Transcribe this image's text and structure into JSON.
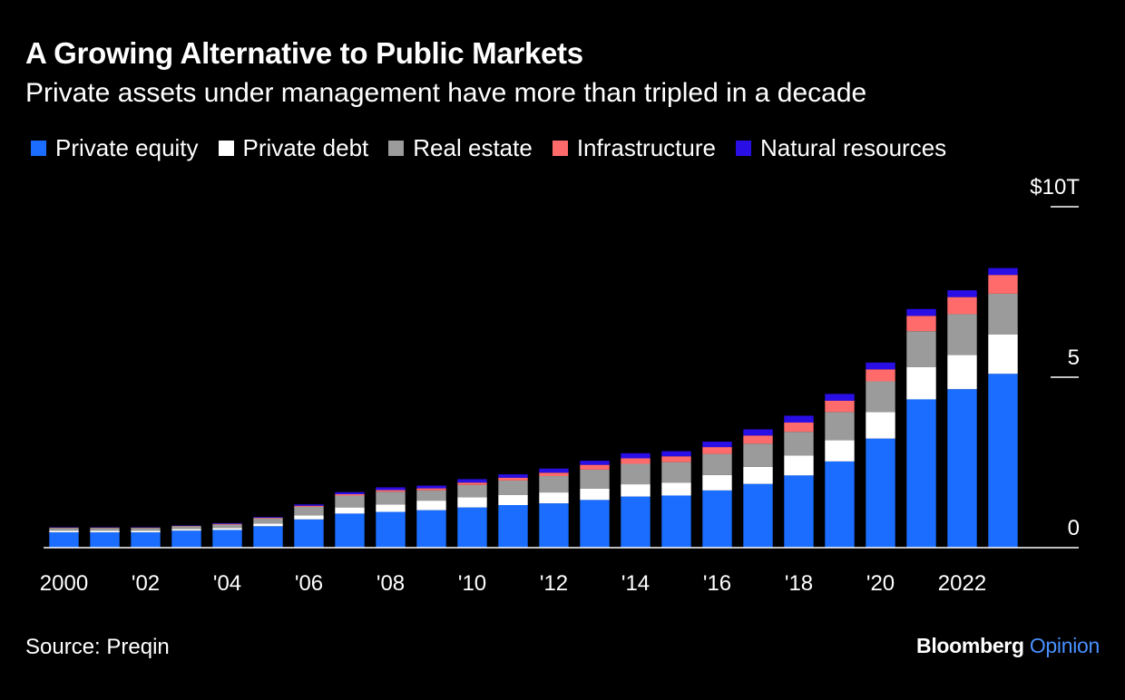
{
  "title": "A Growing Alternative to Public Markets",
  "subtitle": "Private assets under management have more than tripled in a decade",
  "source": "Source: Preqin",
  "brand": {
    "part1": "Bloomberg",
    "part2": "Opinion",
    "part2_color": "#4a90ff"
  },
  "chart_data": {
    "type": "bar",
    "stacked": true,
    "categories": [
      "2000",
      "2001",
      "2002",
      "2003",
      "2004",
      "2005",
      "2006",
      "2007",
      "2008",
      "2009",
      "2010",
      "2011",
      "2012",
      "2013",
      "2014",
      "2015",
      "2016",
      "2017",
      "2018",
      "2019",
      "2020",
      "2021",
      "2022",
      "2023"
    ],
    "x_tick_labels": [
      {
        "index": 0,
        "label": "2000"
      },
      {
        "index": 2,
        "label": "'02"
      },
      {
        "index": 4,
        "label": "'04"
      },
      {
        "index": 6,
        "label": "'06"
      },
      {
        "index": 8,
        "label": "'08"
      },
      {
        "index": 10,
        "label": "'10"
      },
      {
        "index": 12,
        "label": "'12"
      },
      {
        "index": 14,
        "label": "'14"
      },
      {
        "index": 16,
        "label": "'16"
      },
      {
        "index": 18,
        "label": "'18"
      },
      {
        "index": 20,
        "label": "'20"
      },
      {
        "index": 22,
        "label": "2022"
      }
    ],
    "y_ticks": [
      {
        "value": 0,
        "label": "0"
      },
      {
        "value": 5,
        "label": "5"
      },
      {
        "value": 10,
        "label": "$10T"
      }
    ],
    "ylim": [
      0,
      10
    ],
    "ylabel": "",
    "xlabel": "",
    "legend_position": "top",
    "series": [
      {
        "name": "Private equity",
        "color": "#1a6dff",
        "values": [
          0.45,
          0.45,
          0.45,
          0.5,
          0.52,
          0.63,
          0.83,
          1.0,
          1.05,
          1.1,
          1.18,
          1.25,
          1.3,
          1.4,
          1.5,
          1.53,
          1.68,
          1.87,
          2.12,
          2.53,
          3.2,
          4.35,
          4.65,
          5.1
        ]
      },
      {
        "name": "Private debt",
        "color": "#ffffff",
        "values": [
          0.05,
          0.05,
          0.05,
          0.05,
          0.06,
          0.08,
          0.12,
          0.18,
          0.22,
          0.28,
          0.3,
          0.3,
          0.32,
          0.33,
          0.36,
          0.38,
          0.45,
          0.5,
          0.58,
          0.62,
          0.78,
          0.95,
          1.0,
          1.15
        ]
      },
      {
        "name": "Real estate",
        "color": "#9b9b9b",
        "values": [
          0.08,
          0.08,
          0.08,
          0.08,
          0.1,
          0.15,
          0.25,
          0.35,
          0.37,
          0.3,
          0.36,
          0.42,
          0.48,
          0.56,
          0.6,
          0.6,
          0.62,
          0.68,
          0.7,
          0.83,
          0.9,
          1.05,
          1.2,
          1.2
        ]
      },
      {
        "name": "Infrastructure",
        "color": "#ff6b6b",
        "values": [
          0.01,
          0.01,
          0.01,
          0.01,
          0.02,
          0.02,
          0.03,
          0.04,
          0.05,
          0.06,
          0.07,
          0.08,
          0.1,
          0.14,
          0.16,
          0.17,
          0.2,
          0.24,
          0.27,
          0.33,
          0.35,
          0.45,
          0.5,
          0.55
        ]
      },
      {
        "name": "Natural resources",
        "color": "#2a0ee6",
        "values": [
          0.01,
          0.01,
          0.01,
          0.01,
          0.02,
          0.02,
          0.04,
          0.06,
          0.08,
          0.08,
          0.1,
          0.1,
          0.12,
          0.12,
          0.15,
          0.15,
          0.16,
          0.18,
          0.2,
          0.2,
          0.2,
          0.2,
          0.2,
          0.2
        ]
      }
    ]
  }
}
